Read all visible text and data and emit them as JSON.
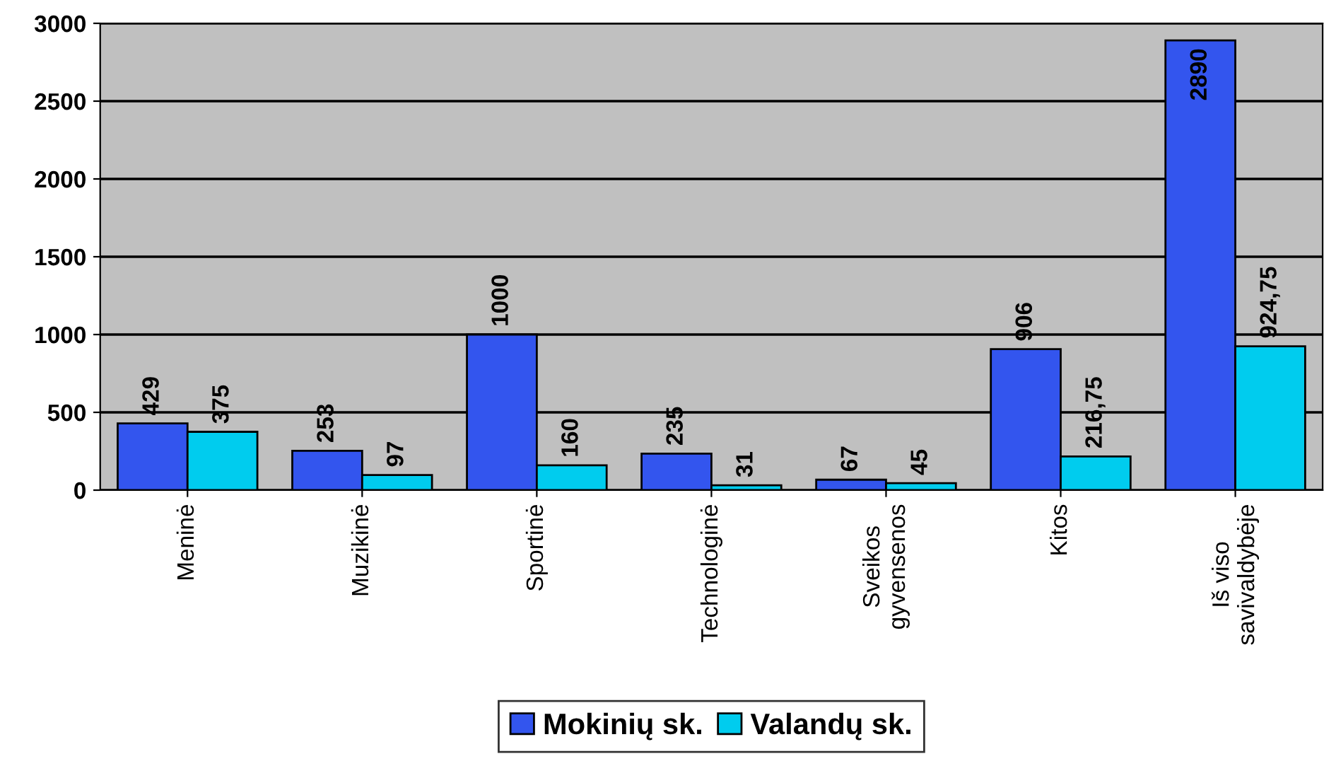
{
  "chart_data": {
    "type": "bar",
    "categories": [
      "Meninė",
      "Muzikinė",
      "Sportinė",
      "Technologinė",
      "Sveikos\ngyvensenos",
      "Kitos",
      "Iš viso\nsavivaldybėje"
    ],
    "series": [
      {
        "name": "Mokinių sk.",
        "color": "#3355ee",
        "values": [
          429,
          253,
          1000,
          235,
          67,
          906,
          2890
        ],
        "value_labels": [
          "429",
          "253",
          "1000",
          "235",
          "67",
          "906",
          "2890"
        ]
      },
      {
        "name": "Valandų sk.",
        "color": "#00ccee",
        "values": [
          375,
          97,
          160,
          31,
          45,
          216.75,
          924.75
        ],
        "value_labels": [
          "375",
          "97",
          "160",
          "31",
          "45",
          "216,75",
          "924,75"
        ]
      }
    ],
    "ylim": [
      0,
      3000
    ],
    "yticks": [
      0,
      500,
      1000,
      1500,
      2000,
      2500,
      3000
    ],
    "grid": "y",
    "legend": "bottom"
  }
}
